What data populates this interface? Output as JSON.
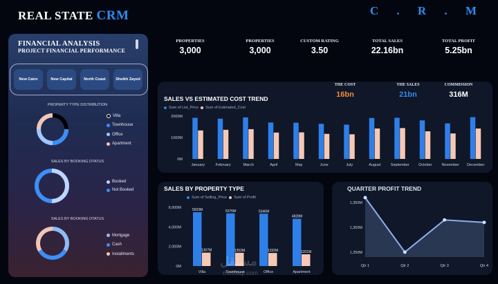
{
  "header": {
    "title_main": "REAL STATE",
    "title_accent": "CRM",
    "logo": "C . R . M"
  },
  "sidebar": {
    "title": "FINANCIAL  ANALYSIS",
    "subtitle": "PROJECT FINANCIAL PERFORMANCE",
    "slicers": [
      "New Cairo",
      "New Capital",
      "North Coast",
      "Sheikh Zayed"
    ],
    "donut1": {
      "title": "PROPERTY TYPE DISTRIBUTION",
      "legend": [
        {
          "label": "Villa",
          "color": "#000000"
        },
        {
          "label": "Townhouse",
          "color": "#3d8ef5"
        },
        {
          "label": "Office",
          "color": "#9ec7ff"
        },
        {
          "label": "Apartment",
          "color": "#f2c6b4"
        }
      ],
      "shares": [
        0.25,
        0.25,
        0.25,
        0.25
      ]
    },
    "donut2": {
      "title": "SALES BY BOOKING DTATUS",
      "legend": [
        {
          "label": "Booked",
          "color": "#bcd6ff"
        },
        {
          "label": "Not Booked",
          "color": "#3d8ef5"
        }
      ],
      "shares": [
        0.5,
        0.5
      ]
    },
    "donut3": {
      "title": "SALES BY BOOKING DTATUS",
      "legend": [
        {
          "label": "Mortgage",
          "color": "#8fbaf5"
        },
        {
          "label": "Cash",
          "color": "#3d8ef5"
        },
        {
          "label": "Installments",
          "color": "#f2c6b4"
        }
      ],
      "shares": [
        0.34,
        0.33,
        0.33
      ]
    }
  },
  "kpis": [
    {
      "label": "PROPERTIES",
      "value": "3,000"
    },
    {
      "label": "PROPERTIES",
      "value": "3,000"
    },
    {
      "label": "CUSTOM RATING",
      "value": "3.50"
    },
    {
      "label": "TOTAL SALES",
      "value": "22.16bn"
    },
    {
      "label": "TOTAL PROFIT",
      "value": "5.25bn"
    }
  ],
  "mini_kpis": [
    {
      "label": "THE COST",
      "value": "16bn",
      "color": "#f08a3c"
    },
    {
      "label": "THE SALES",
      "value": "21bn",
      "color": "#2f8cf0"
    },
    {
      "label": "COMMISSION",
      "value": "316M",
      "color": "#ffffff"
    }
  ],
  "trend_panel": {
    "title": "SALES VS ESTIMATED COST TREND",
    "legend": [
      "Sum of List_Price",
      "Sum of Estimated_Cost"
    ]
  },
  "property_panel": {
    "title": "SALES BY PROPERTY TYPE",
    "legend": [
      "Sum of Selling_Price",
      "Sum of Profit"
    ]
  },
  "quarter_panel": {
    "title": "QUARTER PROFIT TREND"
  },
  "watermark": {
    "text": "مستقل",
    "url": "mostaql.com"
  },
  "chart_data": [
    {
      "type": "bar",
      "title": "SALES VS ESTIMATED COST TREND",
      "categories": [
        "January",
        "February",
        "March",
        "April",
        "May",
        "June",
        "July",
        "August",
        "September",
        "October",
        "November",
        "December"
      ],
      "series": [
        {
          "name": "Sum of List_Price",
          "values": [
            1920,
            1880,
            1940,
            1700,
            1690,
            1640,
            1600,
            1910,
            1920,
            1800,
            1660,
            1950
          ],
          "color": "#2f7fe8"
        },
        {
          "name": "Sum of Estimated_Cost",
          "values": [
            1330,
            1360,
            1390,
            1230,
            1240,
            1170,
            1150,
            1420,
            1440,
            1290,
            1190,
            1420
          ],
          "color": "#f7c8b4"
        }
      ],
      "yticks": [
        "2000M",
        "1000M",
        "0M"
      ],
      "ylim": [
        0,
        2000
      ]
    },
    {
      "type": "bar",
      "title": "SALES BY PROPERTY TYPE",
      "categories": [
        "Villa",
        "Townhouse",
        "Office",
        "Apartment"
      ],
      "series": [
        {
          "name": "Sum of Selling_Price",
          "values": [
            5503,
            5376,
            5346,
            4828
          ],
          "labels": [
            "5503M",
            "5376M",
            "5346M",
            "4828M"
          ],
          "color": "#2f7fe8"
        },
        {
          "name": "Sum of Profit",
          "values": [
            1367,
            1352,
            1332,
            1201
          ],
          "labels": [
            "1367M",
            "1352M",
            "1332M",
            "1201M"
          ],
          "color": "#f7c8b4"
        }
      ],
      "yticks": [
        "6,000M",
        "4,000M",
        "2,000M",
        "0M"
      ],
      "ylim": [
        0,
        6000
      ]
    },
    {
      "type": "area",
      "title": "QUARTER PROFIT TREND",
      "categories": [
        "Qtr 1",
        "Qtr 2",
        "Qtr 3",
        "Qtr 4"
      ],
      "values": [
        1360,
        1250,
        1315,
        1310
      ],
      "yticks": [
        "1,350M",
        "1,300M",
        "1,250M"
      ],
      "ylim": [
        1240,
        1360
      ]
    }
  ]
}
